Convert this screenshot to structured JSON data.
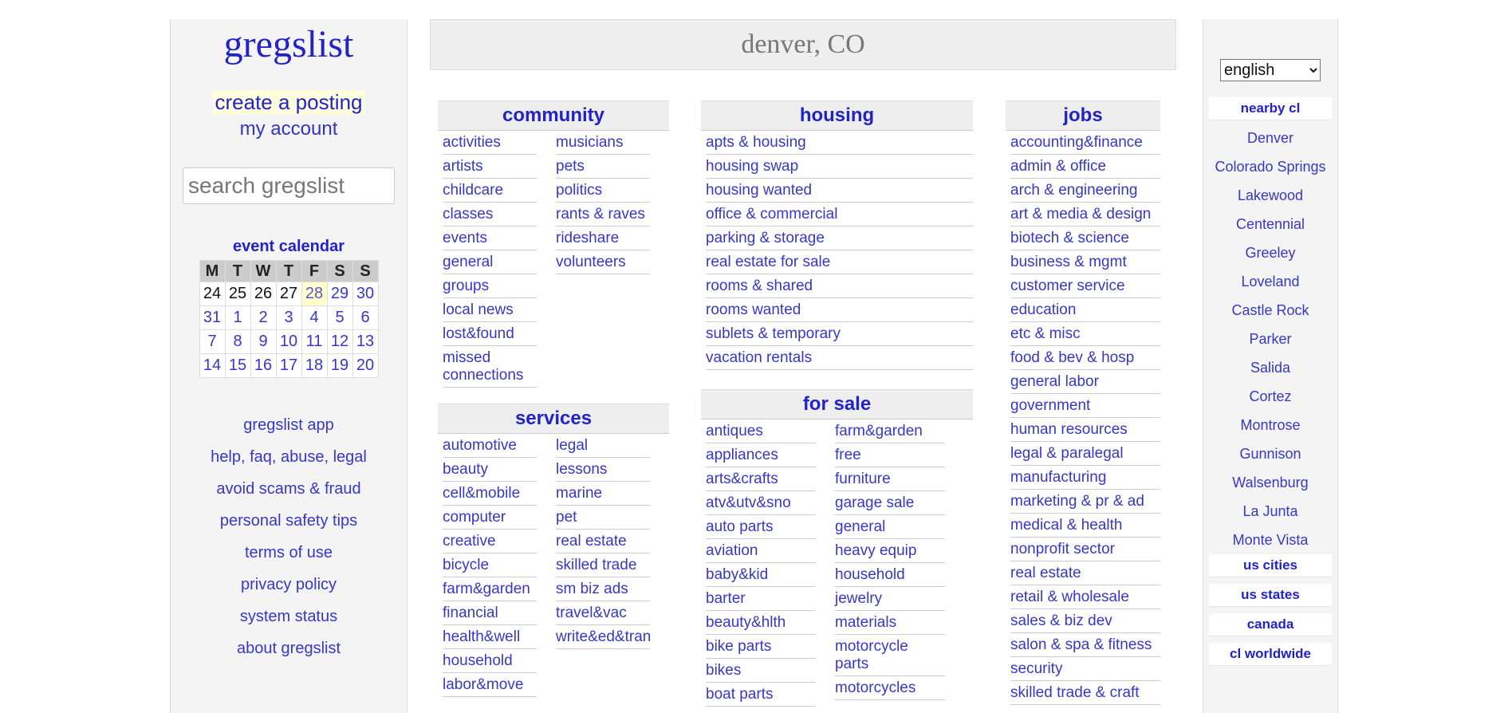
{
  "site": {
    "logo": "gregslist",
    "city": "denver, CO"
  },
  "leftbar": {
    "create_posting": "create a posting",
    "my_account": "my account",
    "search_placeholder": "search gregslist",
    "calendar_title": "event calendar",
    "calendar_days": [
      "M",
      "T",
      "W",
      "T",
      "F",
      "S",
      "S"
    ],
    "calendar_weeks": [
      [
        "24",
        "25",
        "26",
        "27",
        "28",
        "29",
        "30"
      ],
      [
        "31",
        "1",
        "2",
        "3",
        "4",
        "5",
        "6"
      ],
      [
        "7",
        "8",
        "9",
        "10",
        "11",
        "12",
        "13"
      ],
      [
        "14",
        "15",
        "16",
        "17",
        "18",
        "19",
        "20"
      ]
    ],
    "links": [
      "gregslist app",
      "help, faq, abuse, legal",
      "avoid scams & fraud",
      "personal safety tips",
      "terms of use",
      "privacy policy",
      "system status",
      "about gregslist"
    ]
  },
  "community": {
    "title": "community",
    "col1": [
      "activities",
      "artists",
      "childcare",
      "classes",
      "events",
      "general",
      "groups",
      "local news",
      "lost&found",
      "missed connections"
    ],
    "col2": [
      "musicians",
      "pets",
      "politics",
      "rants & raves",
      "rideshare",
      "volunteers"
    ]
  },
  "services": {
    "title": "services",
    "col1": [
      "automotive",
      "beauty",
      "cell&mobile",
      "computer",
      "creative",
      "bicycle",
      "farm&garden",
      "financial",
      "health&well",
      "household",
      "labor&move"
    ],
    "col2": [
      "legal",
      "lessons",
      "marine",
      "pet",
      "real estate",
      "skilled trade",
      "sm biz ads",
      "travel&vac",
      "write&ed&tran"
    ]
  },
  "housing": {
    "title": "housing",
    "items": [
      "apts & housing",
      "housing swap",
      "housing wanted",
      "office & commercial",
      "parking & storage",
      "real estate for sale",
      "rooms & shared",
      "rooms wanted",
      "sublets & temporary",
      "vacation rentals"
    ]
  },
  "forsale": {
    "title": "for sale",
    "col1": [
      "antiques",
      "appliances",
      "arts&crafts",
      "atv&utv&sno",
      "auto parts",
      "aviation",
      "baby&kid",
      "barter",
      "beauty&hlth",
      "bike parts",
      "bikes",
      "boat parts"
    ],
    "col2": [
      "farm&garden",
      "free",
      "furniture",
      "garage sale",
      "general",
      "heavy equip",
      "household",
      "jewelry",
      "materials",
      "motorcycle parts",
      "motorcycles"
    ]
  },
  "jobs": {
    "title": "jobs",
    "items": [
      "accounting&finance",
      "admin & office",
      "arch & engineering",
      "art & media & design",
      "biotech & science",
      "business & mgmt",
      "customer service",
      "education",
      "etc & misc",
      "food & bev & hosp",
      "general labor",
      "government",
      "human resources",
      "legal & paralegal",
      "manufacturing",
      "marketing & pr & ad",
      "medical & health",
      "nonprofit sector",
      "real estate",
      "retail & wholesale",
      "sales & biz dev",
      "salon & spa & fitness",
      "security",
      "skilled trade & craft"
    ]
  },
  "rightbar": {
    "language": "english",
    "nearby_title": "nearby cl",
    "nearby": [
      "Denver",
      "Colorado Springs",
      "Lakewood",
      "Centennial",
      "Greeley",
      "Loveland",
      "Castle Rock",
      "Parker",
      "Salida",
      "Cortez",
      "Montrose",
      "Gunnison",
      "Walsenburg",
      "La Junta",
      "Monte Vista"
    ],
    "us_cities": "us cities",
    "us_states": "us states",
    "canada": "canada",
    "worldwide": "cl worldwide"
  }
}
